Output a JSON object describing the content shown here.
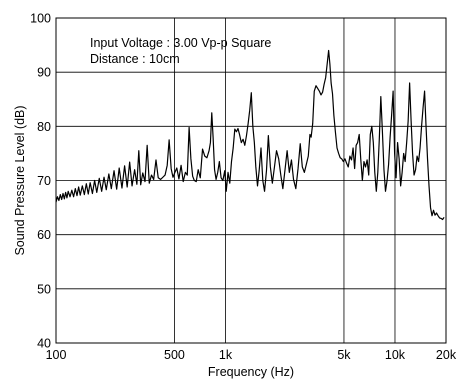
{
  "chart_data": {
    "type": "line",
    "title": "",
    "xlabel": "Frequency (Hz)",
    "ylabel": "Sound Pressure Level (dB)",
    "x_scale": "log",
    "xlim": [
      100,
      20000
    ],
    "ylim": [
      40,
      100
    ],
    "grid": true,
    "x_ticks": [
      {
        "value": 100,
        "label": "100"
      },
      {
        "value": 500,
        "label": "500"
      },
      {
        "value": 1000,
        "label": "1k"
      },
      {
        "value": 5000,
        "label": "5k"
      },
      {
        "value": 10000,
        "label": "10k"
      },
      {
        "value": 20000,
        "label": "20k"
      }
    ],
    "y_ticks": [
      {
        "value": 40,
        "label": "40"
      },
      {
        "value": 50,
        "label": "50"
      },
      {
        "value": 60,
        "label": "60"
      },
      {
        "value": 70,
        "label": "70"
      },
      {
        "value": 80,
        "label": "80"
      },
      {
        "value": 90,
        "label": "90"
      },
      {
        "value": 100,
        "label": "100"
      }
    ],
    "annotations": [
      "Input Voltage : 3.00 Vp-p Square",
      "Distance : 10cm"
    ],
    "series": [
      {
        "color": "#000000",
        "points": [
          [
            100,
            66
          ],
          [
            102,
            67
          ],
          [
            104,
            66.3
          ],
          [
            106,
            67.4
          ],
          [
            108,
            66.5
          ],
          [
            110,
            67.6
          ],
          [
            112,
            66.6
          ],
          [
            114,
            67.8
          ],
          [
            116,
            66.8
          ],
          [
            118,
            68
          ],
          [
            121,
            67
          ],
          [
            124,
            68.2
          ],
          [
            127,
            67
          ],
          [
            130,
            68.5
          ],
          [
            133,
            67.2
          ],
          [
            136,
            68.8
          ],
          [
            139,
            67.3
          ],
          [
            143,
            69
          ],
          [
            147,
            67.4
          ],
          [
            151,
            69.4
          ],
          [
            155,
            67.5
          ],
          [
            159,
            69.6
          ],
          [
            164,
            67.6
          ],
          [
            169,
            70
          ],
          [
            174,
            67.8
          ],
          [
            180,
            70.4
          ],
          [
            186,
            68
          ],
          [
            192,
            70.6
          ],
          [
            198,
            68.3
          ],
          [
            205,
            71.2
          ],
          [
            212,
            68.5
          ],
          [
            220,
            71.8
          ],
          [
            228,
            68.4
          ],
          [
            236,
            72.3
          ],
          [
            245,
            68.6
          ],
          [
            254,
            72.7
          ],
          [
            263,
            68.8
          ],
          [
            272,
            73.4
          ],
          [
            281,
            69
          ],
          [
            291,
            72
          ],
          [
            300,
            69.3
          ],
          [
            308,
            75.5
          ],
          [
            316,
            69.2
          ],
          [
            325,
            71.4
          ],
          [
            335,
            69.8
          ],
          [
            345,
            76.5
          ],
          [
            355,
            69.5
          ],
          [
            366,
            71
          ],
          [
            377,
            70.2
          ],
          [
            389,
            73.8
          ],
          [
            401,
            70.5
          ],
          [
            414,
            70.2
          ],
          [
            427,
            70.6
          ],
          [
            440,
            71
          ],
          [
            453,
            72.8
          ],
          [
            465,
            77.5
          ],
          [
            478,
            72.2
          ],
          [
            490,
            70.6
          ],
          [
            503,
            71.5
          ],
          [
            516,
            72.3
          ],
          [
            531,
            70.3
          ],
          [
            547,
            72.8
          ],
          [
            563,
            69.8
          ],
          [
            580,
            71.5
          ],
          [
            595,
            71
          ],
          [
            610,
            79.8
          ],
          [
            625,
            74
          ],
          [
            640,
            70.8
          ],
          [
            655,
            70
          ],
          [
            672,
            69.8
          ],
          [
            690,
            72
          ],
          [
            710,
            70.5
          ],
          [
            732,
            75.8
          ],
          [
            755,
            74.5
          ],
          [
            777,
            74.2
          ],
          [
            800,
            75.5
          ],
          [
            815,
            77
          ],
          [
            830,
            82.5
          ],
          [
            845,
            78
          ],
          [
            862,
            72
          ],
          [
            880,
            70.2
          ],
          [
            900,
            71.5
          ],
          [
            920,
            73.5
          ],
          [
            942,
            70.5
          ],
          [
            965,
            70
          ],
          [
            990,
            71.8
          ],
          [
            1010,
            68
          ],
          [
            1035,
            71.5
          ],
          [
            1060,
            69.5
          ],
          [
            1085,
            73.5
          ],
          [
            1110,
            76
          ],
          [
            1135,
            79.5
          ],
          [
            1160,
            79
          ],
          [
            1185,
            79.6
          ],
          [
            1210,
            78.5
          ],
          [
            1240,
            77
          ],
          [
            1270,
            77.6
          ],
          [
            1300,
            76.5
          ],
          [
            1330,
            78.3
          ],
          [
            1360,
            80.5
          ],
          [
            1390,
            83
          ],
          [
            1420,
            86.2
          ],
          [
            1450,
            80
          ],
          [
            1480,
            77
          ],
          [
            1510,
            72.5
          ],
          [
            1545,
            69
          ],
          [
            1580,
            71.8
          ],
          [
            1620,
            76
          ],
          [
            1660,
            70
          ],
          [
            1700,
            68
          ],
          [
            1745,
            71.8
          ],
          [
            1790,
            78.3
          ],
          [
            1840,
            72.5
          ],
          [
            1890,
            69.5
          ],
          [
            1945,
            72.5
          ],
          [
            2000,
            75.5
          ],
          [
            2060,
            74
          ],
          [
            2120,
            71
          ],
          [
            2180,
            68.5
          ],
          [
            2245,
            72
          ],
          [
            2310,
            75.5
          ],
          [
            2380,
            71.5
          ],
          [
            2450,
            73.8
          ],
          [
            2520,
            70.2
          ],
          [
            2600,
            68.5
          ],
          [
            2680,
            72.2
          ],
          [
            2760,
            76.8
          ],
          [
            2840,
            72.5
          ],
          [
            2920,
            71.5
          ],
          [
            3000,
            73
          ],
          [
            3080,
            74.5
          ],
          [
            3150,
            78.5
          ],
          [
            3200,
            78
          ],
          [
            3270,
            80.5
          ],
          [
            3340,
            86.5
          ],
          [
            3420,
            87.5
          ],
          [
            3500,
            87
          ],
          [
            3580,
            86.5
          ],
          [
            3660,
            85.8
          ],
          [
            3740,
            86.3
          ],
          [
            3820,
            87.8
          ],
          [
            3900,
            89
          ],
          [
            3980,
            91.5
          ],
          [
            4060,
            94
          ],
          [
            4130,
            91.5
          ],
          [
            4200,
            88
          ],
          [
            4280,
            86
          ],
          [
            4360,
            82
          ],
          [
            4450,
            79
          ],
          [
            4550,
            76
          ],
          [
            4650,
            75
          ],
          [
            4750,
            74.2
          ],
          [
            4850,
            74
          ],
          [
            4960,
            73.5
          ],
          [
            5070,
            74
          ],
          [
            5180,
            73.2
          ],
          [
            5300,
            72.5
          ],
          [
            5420,
            74.5
          ],
          [
            5540,
            73.8
          ],
          [
            5660,
            76
          ],
          [
            5780,
            72.2
          ],
          [
            5900,
            76.5
          ],
          [
            6020,
            77
          ],
          [
            6150,
            78.5
          ],
          [
            6280,
            74
          ],
          [
            6420,
            70
          ],
          [
            6560,
            73.5
          ],
          [
            6700,
            72.5
          ],
          [
            6850,
            73.8
          ],
          [
            7000,
            71
          ],
          [
            7150,
            78.5
          ],
          [
            7300,
            80
          ],
          [
            7450,
            77
          ],
          [
            7600,
            71.5
          ],
          [
            7760,
            68
          ],
          [
            7920,
            71.5
          ],
          [
            8080,
            77.6
          ],
          [
            8250,
            85.5
          ],
          [
            8430,
            79
          ],
          [
            8610,
            72
          ],
          [
            8790,
            68
          ],
          [
            8980,
            70
          ],
          [
            9170,
            73
          ],
          [
            9360,
            78
          ],
          [
            9550,
            82
          ],
          [
            9750,
            86.5
          ],
          [
            9950,
            75
          ],
          [
            10150,
            70.5
          ],
          [
            10360,
            77
          ],
          [
            10580,
            74
          ],
          [
            10800,
            69
          ],
          [
            11020,
            71.5
          ],
          [
            11250,
            75
          ],
          [
            11480,
            73.5
          ],
          [
            11720,
            77
          ],
          [
            11960,
            81
          ],
          [
            12200,
            88
          ],
          [
            12450,
            81
          ],
          [
            12700,
            75
          ],
          [
            12960,
            71
          ],
          [
            13230,
            72
          ],
          [
            13500,
            74.5
          ],
          [
            13780,
            73.5
          ],
          [
            14060,
            76
          ],
          [
            14350,
            80
          ],
          [
            14650,
            83.5
          ],
          [
            14950,
            86.5
          ],
          [
            15250,
            80
          ],
          [
            15560,
            74
          ],
          [
            15880,
            69
          ],
          [
            16210,
            65
          ],
          [
            16540,
            63.5
          ],
          [
            16880,
            64.5
          ],
          [
            17230,
            63.6
          ],
          [
            17590,
            64
          ],
          [
            17950,
            63.5
          ],
          [
            18320,
            63.1
          ],
          [
            18700,
            63
          ],
          [
            19090,
            62.8
          ],
          [
            19490,
            63.2
          ]
        ]
      }
    ]
  }
}
